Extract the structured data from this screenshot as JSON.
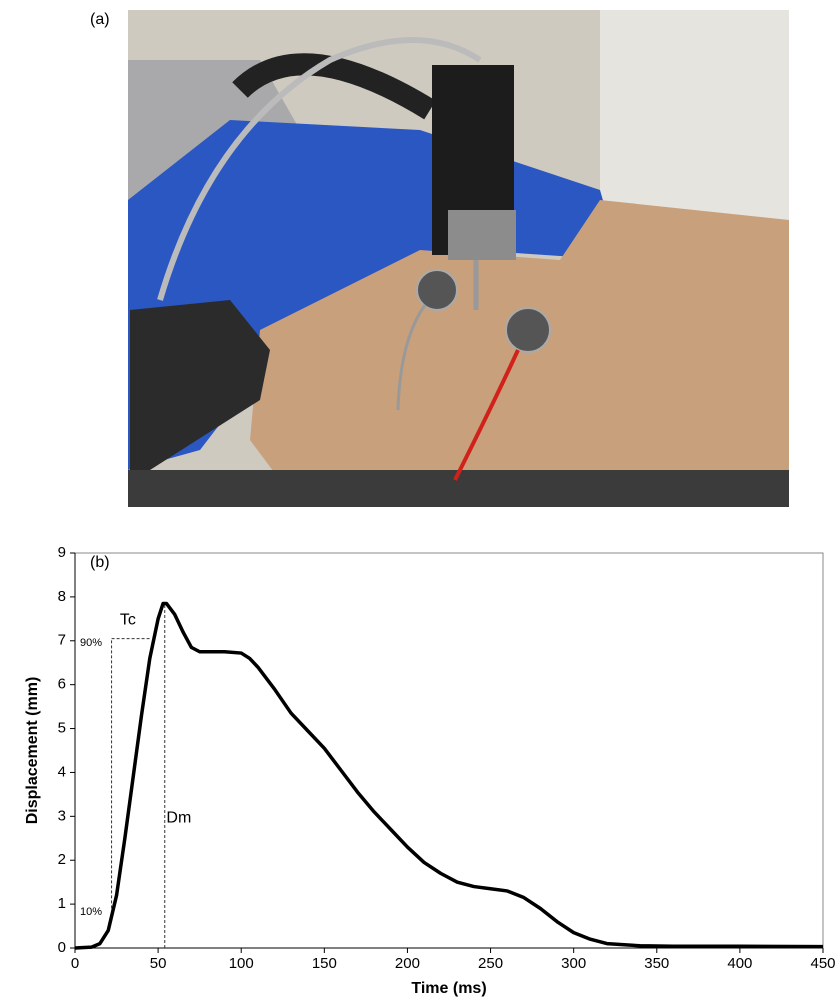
{
  "panels": {
    "a": "(a)",
    "b": "(b)"
  },
  "chart_data": {
    "type": "line",
    "x_label": "Time (ms)",
    "y_label": "Displacement (mm)",
    "x": [
      0,
      10,
      15,
      20,
      25,
      30,
      35,
      40,
      45,
      50,
      53,
      55,
      60,
      65,
      70,
      75,
      80,
      90,
      100,
      105,
      110,
      120,
      130,
      140,
      150,
      160,
      170,
      180,
      190,
      200,
      210,
      220,
      230,
      240,
      250,
      260,
      270,
      280,
      290,
      300,
      310,
      320,
      340,
      360,
      400,
      450
    ],
    "series": [
      {
        "color": "#000000",
        "values": [
          0,
          0.02,
          0.1,
          0.4,
          1.2,
          2.5,
          3.9,
          5.3,
          6.6,
          7.5,
          7.85,
          7.85,
          7.6,
          7.2,
          6.85,
          6.75,
          6.75,
          6.75,
          6.72,
          6.6,
          6.4,
          5.9,
          5.35,
          4.95,
          4.55,
          4.05,
          3.55,
          3.1,
          2.7,
          2.3,
          1.95,
          1.7,
          1.5,
          1.4,
          1.35,
          1.3,
          1.15,
          0.9,
          0.6,
          0.35,
          0.2,
          0.1,
          0.05,
          0.04,
          0.04,
          0.03
        ]
      }
    ],
    "xlim": [
      0,
      450
    ],
    "ylim": [
      0,
      9
    ],
    "xticks": [
      0,
      50,
      100,
      150,
      200,
      250,
      300,
      350,
      400,
      450
    ],
    "yticks": [
      0,
      1,
      2,
      3,
      4,
      5,
      6,
      7,
      8,
      9
    ],
    "guides": [
      {
        "x": [
          22,
          22
        ],
        "y": [
          0.79,
          7.05
        ]
      },
      {
        "x": [
          22,
          45
        ],
        "y": [
          7.05,
          7.05
        ]
      },
      {
        "x": [
          54,
          54
        ],
        "y": [
          0,
          7.88
        ]
      }
    ],
    "annotations": [
      {
        "text": "Tc",
        "x": 27,
        "y": 7.47,
        "size": 16
      },
      {
        "text": "Dm",
        "x": 55,
        "y": 2.96,
        "size": 16
      },
      {
        "text": "90%",
        "x": 3,
        "y": 6.95,
        "size": 11
      },
      {
        "text": "10%",
        "x": 3,
        "y": 0.82,
        "size": 11
      }
    ]
  }
}
